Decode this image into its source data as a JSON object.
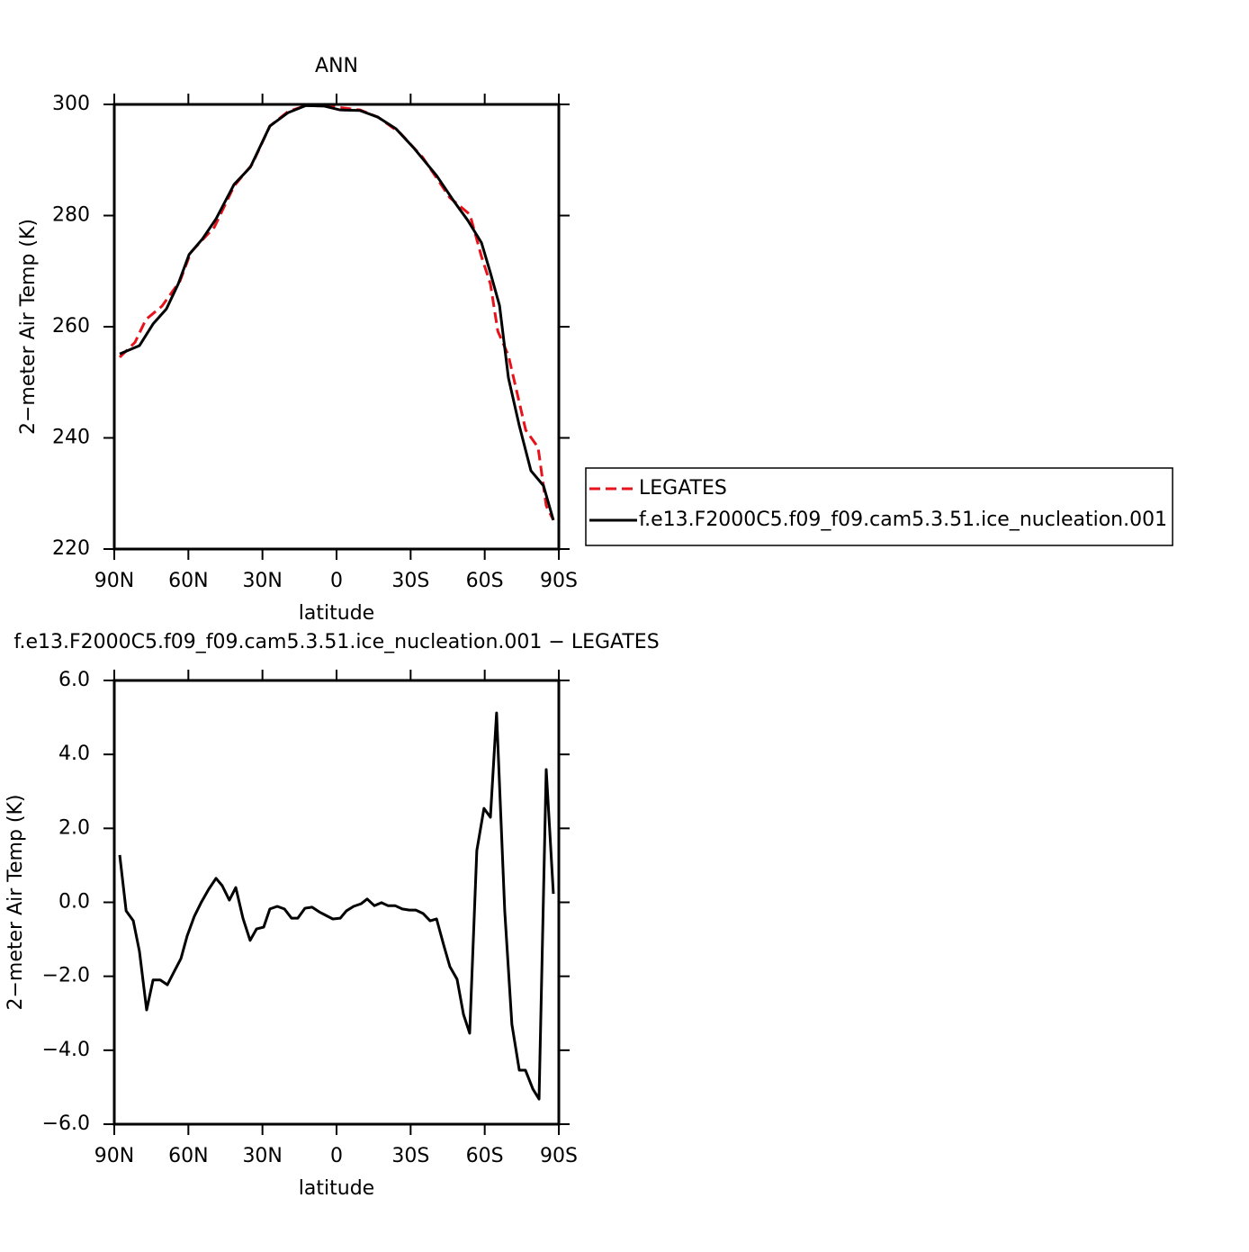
{
  "chart_data": [
    {
      "type": "line",
      "title": "ANN",
      "xlabel": "latitude",
      "ylabel": "2−meter Air Temp (K)",
      "xlim": [
        90,
        -90
      ],
      "xticks": [
        {
          "value": 90,
          "label": "90N"
        },
        {
          "value": 60,
          "label": "60N"
        },
        {
          "value": 30,
          "label": "30N"
        },
        0,
        {
          "value": -30,
          "label": "30S"
        },
        {
          "value": -60,
          "label": "60S"
        },
        {
          "value": -90,
          "label": "90S"
        }
      ],
      "ylim": [
        220,
        300
      ],
      "yticks": [
        220,
        240,
        260,
        280,
        300
      ],
      "legend": "right",
      "series": [
        {
          "name": "LEGATES",
          "color": "#e8121b",
          "dash": true,
          "x": [
            87.8,
            81.6,
            77.2,
            70.7,
            63.4,
            59.0,
            49.5,
            41.5,
            34.2,
            27.0,
            19.7,
            12.4,
            5.1,
            -2.2,
            -9.5,
            -16.8,
            -25.9,
            -35.0,
            -45.9,
            -54.0,
            -58.7,
            -62.3,
            -65.3,
            -69.6,
            -76.6,
            -81.6,
            -84.9,
            -87.8
          ],
          "values": [
            254.5,
            257.2,
            261.3,
            263.7,
            268.2,
            273.4,
            277.9,
            285.3,
            289.2,
            296.1,
            298.7,
            299.8,
            299.7,
            299.4,
            299.0,
            297.7,
            294.8,
            290.4,
            283.2,
            280.2,
            272.6,
            267.7,
            259.2,
            254.8,
            241.4,
            238.3,
            227.8,
            225.2
          ]
        },
        {
          "name": "f.e13.F2000C5.f09_f09.cam5.3.51.ice_nucleation.001",
          "color": "#000000",
          "dash": false,
          "x": [
            87.8,
            79.8,
            74.3,
            68.9,
            64.1,
            59.7,
            54.3,
            48.8,
            41.5,
            34.9,
            27.0,
            19.7,
            12.4,
            5.1,
            -1.5,
            -9.5,
            -16.8,
            -24.1,
            -31.4,
            -40.5,
            -47.8,
            -53.2,
            -58.7,
            -62.3,
            -66.0,
            -69.6,
            -74.0,
            -78.7,
            -83.8,
            -87.8
          ],
          "values": [
            255.1,
            256.6,
            260.5,
            263.2,
            267.7,
            273.0,
            275.8,
            279.4,
            285.6,
            288.7,
            296.1,
            298.5,
            299.8,
            299.7,
            299.0,
            298.9,
            297.7,
            295.6,
            292.1,
            287.2,
            282.4,
            279.1,
            275.1,
            269.7,
            263.8,
            250.8,
            242.2,
            234.1,
            231.4,
            225.2
          ]
        }
      ]
    },
    {
      "type": "line",
      "title": "f.e13.F2000C5.f09_f09.cam5.3.51.ice_nucleation.001  −  LEGATES",
      "xlabel": "latitude",
      "ylabel": "2−meter Air Temp (K)",
      "xlim": [
        90,
        -90
      ],
      "xticks": [
        {
          "value": 90,
          "label": "90N"
        },
        {
          "value": 60,
          "label": "60N"
        },
        {
          "value": 30,
          "label": "30N"
        },
        0,
        {
          "value": -30,
          "label": "30S"
        },
        {
          "value": -60,
          "label": "60S"
        },
        {
          "value": -90,
          "label": "90S"
        }
      ],
      "ylim": [
        -6,
        6
      ],
      "yticks": [
        {
          "value": -6,
          "label": "−6.0"
        },
        {
          "value": -4,
          "label": "−4.0"
        },
        {
          "value": -2,
          "label": "−2.0"
        },
        {
          "value": 0,
          "label": "0.0"
        },
        {
          "value": 2,
          "label": "2.0"
        },
        {
          "value": 4,
          "label": "4.0"
        },
        {
          "value": 6,
          "label": "6.0"
        }
      ],
      "series": [
        {
          "color": "#000000",
          "dash": false,
          "x": [
            87.8,
            85.2,
            82.3,
            79.8,
            76.9,
            74.3,
            71.4,
            68.5,
            65.9,
            63.0,
            60.5,
            57.6,
            54.7,
            51.8,
            48.8,
            46.3,
            43.4,
            40.8,
            37.9,
            35.0,
            32.4,
            29.5,
            27.0,
            24.0,
            21.1,
            18.2,
            15.7,
            12.8,
            9.9,
            7.0,
            4.4,
            1.5,
            -1.5,
            -4.0,
            -6.9,
            -9.9,
            -12.4,
            -15.3,
            -18.2,
            -20.8,
            -23.7,
            -26.6,
            -29.5,
            -32.1,
            -35.0,
            -37.9,
            -40.5,
            -43.4,
            -45.9,
            -48.8,
            -51.4,
            -53.9,
            -56.8,
            -59.7,
            -62.3,
            -64.8,
            -68.1,
            -71.0,
            -74.0,
            -76.5,
            -79.5,
            -82.0,
            -84.9,
            -87.8
          ],
          "values": [
            1.28,
            -0.23,
            -0.5,
            -1.33,
            -2.91,
            -2.1,
            -2.1,
            -2.23,
            -1.89,
            -1.52,
            -0.91,
            -0.38,
            0.01,
            0.35,
            0.65,
            0.45,
            0.06,
            0.4,
            -0.43,
            -1.03,
            -0.72,
            -0.67,
            -0.18,
            -0.11,
            -0.18,
            -0.43,
            -0.43,
            -0.16,
            -0.13,
            -0.26,
            -0.35,
            -0.45,
            -0.43,
            -0.23,
            -0.11,
            -0.04,
            0.09,
            -0.09,
            -0.01,
            -0.09,
            -0.09,
            -0.18,
            -0.21,
            -0.21,
            -0.3,
            -0.5,
            -0.45,
            -1.16,
            -1.74,
            -2.08,
            -3.03,
            -3.54,
            1.4,
            2.54,
            2.3,
            5.12,
            -0.23,
            -3.3,
            -4.54,
            -4.54,
            -5.05,
            -5.32,
            3.59,
            0.23
          ]
        }
      ]
    }
  ]
}
